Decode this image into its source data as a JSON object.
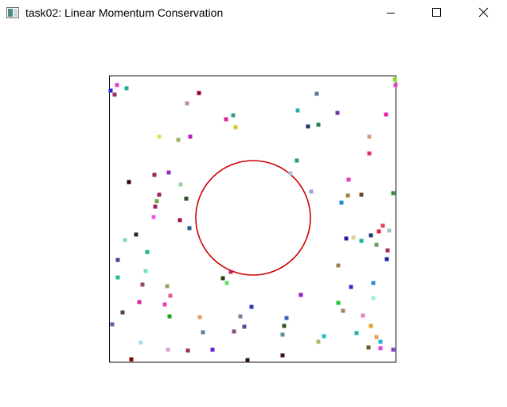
{
  "window": {
    "title": "task02: Linear Momentum Conservation",
    "icons": {
      "app": "window-app-icon",
      "minimize": "minimize-icon",
      "maximize": "maximize-icon",
      "close": "close-icon"
    }
  },
  "simulation": {
    "colors": {
      "box_border": "#000000",
      "ring": "#cc0000",
      "background": "#ffffff"
    }
  }
}
